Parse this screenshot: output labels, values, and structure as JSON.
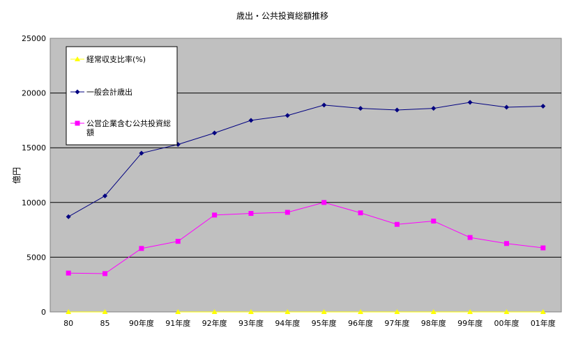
{
  "chart_data": {
    "type": "line",
    "title": "歳出・公共投資総額推移",
    "ylabel": "億円",
    "xlabel": "",
    "ylim": [
      0,
      25000
    ],
    "yticks": [
      0,
      5000,
      10000,
      15000,
      20000,
      25000
    ],
    "grid": true,
    "legend_position": "top-left",
    "background_color": "#c0c0c0",
    "categories": [
      "80",
      "85",
      "90年度",
      "91年度",
      "92年度",
      "93年度",
      "94年度",
      "95年度",
      "96年度",
      "97年度",
      "98年度",
      "99年度",
      "00年度",
      "01年度"
    ],
    "series": [
      {
        "name": "経常収支比率(%)",
        "color": "#ffff00",
        "marker": "triangle",
        "values": [
          0,
          0,
          null,
          0,
          0,
          0,
          0,
          0,
          0,
          0,
          0,
          0,
          0,
          0
        ]
      },
      {
        "name": "一般会計歳出",
        "color": "#000080",
        "marker": "diamond",
        "values": [
          8700,
          10600,
          14500,
          15300,
          16350,
          17500,
          17950,
          18900,
          18600,
          18450,
          18600,
          19150,
          18700,
          18800
        ]
      },
      {
        "name": "公営企業含む公共投資総額",
        "color": "#ff00ff",
        "marker": "square",
        "values": [
          3550,
          3500,
          5800,
          6450,
          8850,
          9000,
          9100,
          10000,
          9050,
          8000,
          8300,
          6800,
          6250,
          5850
        ]
      }
    ]
  }
}
